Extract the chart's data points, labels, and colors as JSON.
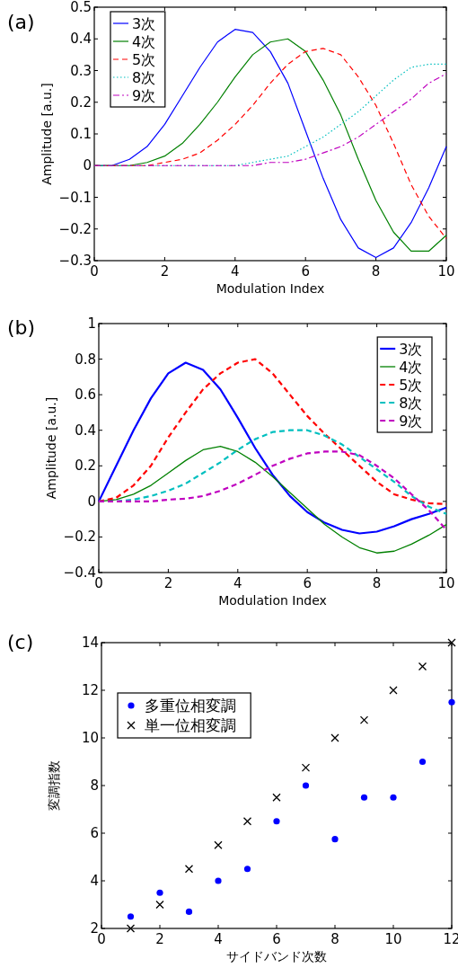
{
  "chart_data": [
    {
      "type": "line",
      "title": "(a)",
      "xlabel": "Modulation Index",
      "ylabel": "Amplitude  [a.u.]",
      "x": [
        0,
        0.5,
        1,
        1.5,
        2,
        2.5,
        3,
        3.5,
        4,
        4.5,
        5,
        5.5,
        6,
        6.5,
        7,
        7.5,
        8,
        8.5,
        9,
        9.5,
        10
      ],
      "xlim": [
        0,
        10
      ],
      "xticks": [
        0,
        2,
        4,
        6,
        8,
        10
      ],
      "ylim": [
        -0.3,
        0.5
      ],
      "yticks": [
        -0.3,
        -0.2,
        -0.1,
        0,
        0.1,
        0.2,
        0.3,
        0.4,
        0.5
      ],
      "legend": "top left",
      "grid": false,
      "marker": "none",
      "series": [
        {
          "name": "3次",
          "color": "#0000ff",
          "line_style": "solid",
          "values": [
            0,
            0,
            0.02,
            0.06,
            0.13,
            0.22,
            0.31,
            0.39,
            0.43,
            0.42,
            0.36,
            0.26,
            0.11,
            -0.04,
            -0.17,
            -0.26,
            -0.29,
            -0.26,
            -0.18,
            -0.07,
            0.06
          ]
        },
        {
          "name": "4次",
          "color": "#008000",
          "line_style": "solid",
          "values": [
            0,
            0,
            0,
            0.01,
            0.03,
            0.07,
            0.13,
            0.2,
            0.28,
            0.35,
            0.39,
            0.4,
            0.36,
            0.27,
            0.16,
            0.02,
            -0.11,
            -0.21,
            -0.27,
            -0.27,
            -0.22
          ]
        },
        {
          "name": "5次",
          "color": "#ff0000",
          "line_style": "dashed",
          "values": [
            0,
            0,
            0,
            0,
            0.01,
            0.02,
            0.04,
            0.08,
            0.13,
            0.19,
            0.26,
            0.32,
            0.36,
            0.37,
            0.35,
            0.28,
            0.19,
            0.07,
            -0.06,
            -0.16,
            -0.23
          ]
        },
        {
          "name": "8次",
          "color": "#00bfbf",
          "line_style": "dotted",
          "values": [
            0,
            0,
            0,
            0,
            0,
            0,
            0,
            0,
            0,
            0.01,
            0.02,
            0.03,
            0.06,
            0.09,
            0.13,
            0.17,
            0.22,
            0.27,
            0.31,
            0.32,
            0.32
          ]
        },
        {
          "name": "9次",
          "color": "#bf00bf",
          "line_style": "dashdot",
          "values": [
            0,
            0,
            0,
            0,
            0,
            0,
            0,
            0,
            0,
            0,
            0.01,
            0.01,
            0.02,
            0.04,
            0.06,
            0.09,
            0.13,
            0.17,
            0.21,
            0.26,
            0.29
          ]
        }
      ]
    },
    {
      "type": "line",
      "title": "(b)",
      "xlabel": "Modulation Index",
      "ylabel": "Amplitude [a.u.]",
      "x": [
        0,
        0.5,
        1,
        1.5,
        2,
        2.5,
        3,
        3.5,
        4,
        4.5,
        5,
        5.5,
        6,
        6.5,
        7,
        7.5,
        8,
        8.5,
        9,
        9.5,
        10
      ],
      "xlim": [
        0,
        10
      ],
      "xticks": [
        0,
        2,
        4,
        6,
        8,
        10
      ],
      "ylim": [
        -0.4,
        1
      ],
      "yticks": [
        -0.4,
        -0.2,
        0,
        0.2,
        0.4,
        0.6,
        0.8,
        1
      ],
      "legend": "top right",
      "grid": false,
      "marker": "none",
      "series": [
        {
          "name": "3次",
          "color": "#0000ff",
          "line_style": "solid",
          "values": [
            0,
            0.2,
            0.4,
            0.58,
            0.72,
            0.78,
            0.74,
            0.63,
            0.47,
            0.3,
            0.15,
            0.03,
            -0.06,
            -0.12,
            -0.16,
            -0.18,
            -0.17,
            -0.14,
            -0.1,
            -0.07,
            -0.035
          ]
        },
        {
          "name": "4次",
          "color": "#008000",
          "line_style": "solid",
          "values": [
            0,
            0.01,
            0.04,
            0.09,
            0.16,
            0.23,
            0.29,
            0.31,
            0.28,
            0.22,
            0.14,
            0.05,
            -0.04,
            -0.13,
            -0.2,
            -0.26,
            -0.29,
            -0.28,
            -0.24,
            -0.19,
            -0.13
          ]
        },
        {
          "name": "5次",
          "color": "#ff0000",
          "line_style": "dashed",
          "values": [
            0,
            0.02,
            0.09,
            0.2,
            0.36,
            0.5,
            0.63,
            0.72,
            0.78,
            0.8,
            0.72,
            0.6,
            0.48,
            0.38,
            0.29,
            0.2,
            0.11,
            0.04,
            0.01,
            -0.01,
            -0.015
          ]
        },
        {
          "name": "8次",
          "color": "#00bfbf",
          "line_style": "dashed",
          "values": [
            0,
            0,
            0.01,
            0.03,
            0.06,
            0.1,
            0.16,
            0.22,
            0.29,
            0.35,
            0.39,
            0.4,
            0.4,
            0.37,
            0.32,
            0.25,
            0.18,
            0.11,
            0.03,
            -0.03,
            -0.07
          ]
        },
        {
          "name": "9次",
          "color": "#bf00bf",
          "line_style": "dashed",
          "values": [
            0,
            0,
            0,
            0,
            0.01,
            0.015,
            0.03,
            0.06,
            0.1,
            0.15,
            0.2,
            0.24,
            0.27,
            0.28,
            0.28,
            0.26,
            0.2,
            0.13,
            0.04,
            -0.05,
            -0.16
          ]
        }
      ]
    },
    {
      "type": "scatter",
      "title": "(c)",
      "xlabel": "サイドバンド次数",
      "ylabel": "変調指数",
      "x": [
        1,
        2,
        3,
        4,
        5,
        6,
        7,
        8,
        9,
        10,
        11,
        12
      ],
      "xlim": [
        0,
        12
      ],
      "xticks": [
        0,
        2,
        4,
        6,
        8,
        10,
        12
      ],
      "ylim": [
        2,
        14
      ],
      "yticks": [
        2,
        4,
        6,
        8,
        10,
        12,
        14
      ],
      "legend": "top left",
      "grid": false,
      "series": [
        {
          "name": "多重位相変調",
          "color": "#0000ff",
          "marker": "circle",
          "values": [
            2.5,
            3.5,
            2.7,
            4,
            4.5,
            6.5,
            8,
            5.75,
            7.5,
            7.5,
            9,
            11.5
          ]
        },
        {
          "name": "単一位相変調",
          "color": "#000000",
          "marker": "cross",
          "values": [
            2,
            3,
            4.5,
            5.5,
            6.5,
            7.5,
            8.75,
            10,
            10.75,
            12,
            13,
            14
          ]
        }
      ]
    }
  ]
}
